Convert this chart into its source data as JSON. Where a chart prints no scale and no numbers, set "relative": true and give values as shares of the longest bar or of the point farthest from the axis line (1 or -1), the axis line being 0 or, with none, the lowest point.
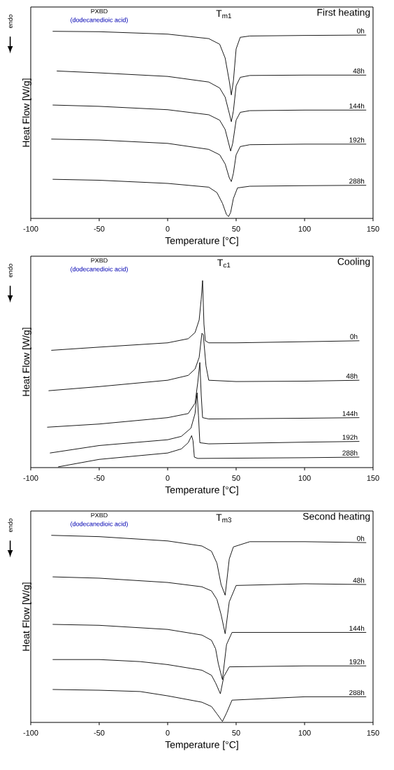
{
  "chart_data": [
    {
      "type": "line",
      "title": "First heating",
      "xlabel": "Temperature [°C]",
      "ylabel": "Heat Flow [W/g]",
      "relative": true,
      "xlim": [
        -100,
        150
      ],
      "xticks": [
        -100,
        -50,
        0,
        50,
        100,
        150
      ],
      "annotations": [
        "PXBD",
        "(dodecanedioic acid)",
        "T$_{m1}$",
        "endo"
      ],
      "series": [
        {
          "name": "0h",
          "color": "#000000",
          "x": [
            -84,
            -50,
            0,
            30,
            38,
            42,
            45,
            46.5,
            48,
            50,
            53,
            60,
            100,
            145
          ],
          "values": [
            1.0,
            0.998,
            0.985,
            0.961,
            0.931,
            0.857,
            0.734,
            0.66,
            0.734,
            0.906,
            0.968,
            0.975,
            0.978,
            0.98
          ]
        },
        {
          "name": "48h",
          "color": "#000000",
          "x": [
            -81,
            -50,
            0,
            30,
            38,
            42,
            45,
            46.5,
            48,
            50,
            53,
            60,
            100,
            145
          ],
          "values": [
            0.788,
            0.778,
            0.759,
            0.729,
            0.697,
            0.648,
            0.562,
            0.517,
            0.574,
            0.709,
            0.754,
            0.764,
            0.766,
            0.766
          ]
        },
        {
          "name": "144h",
          "color": "#000000",
          "x": [
            -84,
            -50,
            0,
            30,
            38,
            42,
            45,
            46,
            47.5,
            50,
            53,
            60,
            100,
            145
          ],
          "values": [
            0.606,
            0.599,
            0.581,
            0.554,
            0.525,
            0.475,
            0.389,
            0.36,
            0.401,
            0.525,
            0.567,
            0.576,
            0.579,
            0.579
          ]
        },
        {
          "name": "192h",
          "color": "#000000",
          "x": [
            -85,
            -50,
            0,
            30,
            38,
            42,
            45,
            46.5,
            48,
            50,
            53,
            60,
            100,
            145
          ],
          "values": [
            0.424,
            0.419,
            0.401,
            0.369,
            0.34,
            0.291,
            0.217,
            0.197,
            0.241,
            0.34,
            0.384,
            0.394,
            0.397,
            0.397
          ]
        },
        {
          "name": "288h",
          "color": "#000000",
          "x": [
            -84,
            -50,
            0,
            30,
            36,
            40,
            43,
            44.5,
            46,
            48,
            51,
            60,
            100,
            145
          ],
          "values": [
            0.209,
            0.204,
            0.187,
            0.167,
            0.138,
            0.081,
            0.02,
            0.01,
            0.032,
            0.106,
            0.163,
            0.172,
            0.175,
            0.177
          ]
        }
      ]
    },
    {
      "type": "line",
      "title": "Cooling",
      "xlabel": "Temperature [°C]",
      "ylabel": "Heat Flow [W/g]",
      "relative": true,
      "xlim": [
        -100,
        150
      ],
      "xticks": [
        -100,
        -50,
        0,
        50,
        100,
        150
      ],
      "annotations": [
        "PXBD",
        "(dodecanedioic acid)",
        "T$_{c1}$",
        "endo"
      ],
      "series": [
        {
          "name": "0h",
          "color": "#000000",
          "x": [
            -85,
            -50,
            0,
            15,
            20,
            23,
            24.5,
            25.5,
            26.5,
            27.5,
            30,
            50,
            100,
            140
          ],
          "values": [
            0.627,
            0.644,
            0.667,
            0.689,
            0.722,
            0.789,
            0.9,
            1.0,
            0.767,
            0.678,
            0.667,
            0.667,
            0.673,
            0.678
          ]
        },
        {
          "name": "48h",
          "color": "#000000",
          "x": [
            -87,
            -50,
            0,
            15,
            20,
            23,
            25,
            26,
            28,
            30,
            50,
            100,
            140
          ],
          "values": [
            0.411,
            0.433,
            0.467,
            0.493,
            0.527,
            0.589,
            0.718,
            0.711,
            0.544,
            0.467,
            0.46,
            0.462,
            0.467
          ]
        },
        {
          "name": "144h",
          "color": "#000000",
          "x": [
            -88,
            -50,
            0,
            15,
            20,
            22,
            23.5,
            24.5,
            25.5,
            30,
            100,
            140
          ],
          "values": [
            0.216,
            0.233,
            0.267,
            0.289,
            0.344,
            0.456,
            0.562,
            0.389,
            0.267,
            0.26,
            0.264,
            0.267
          ]
        },
        {
          "name": "192h",
          "color": "#000000",
          "x": [
            -86,
            -50,
            0,
            10,
            17,
            20,
            21.5,
            22.5,
            23.5,
            30,
            100,
            140
          ],
          "values": [
            0.078,
            0.118,
            0.149,
            0.167,
            0.211,
            0.289,
            0.4,
            0.278,
            0.133,
            0.127,
            0.136,
            0.14
          ]
        },
        {
          "name": "288h",
          "color": "#000000",
          "x": [
            -80,
            -50,
            0,
            10,
            15,
            17.5,
            18.5,
            19.5,
            22,
            100,
            140
          ],
          "values": [
            0.004,
            0.044,
            0.078,
            0.1,
            0.133,
            0.171,
            0.144,
            0.056,
            0.049,
            0.053,
            0.056
          ]
        }
      ]
    },
    {
      "type": "line",
      "title": "Second heating",
      "xlabel": "Temperature [°C]",
      "ylabel": "Heat Flow [W/g]",
      "relative": true,
      "xlim": [
        -100,
        150
      ],
      "xticks": [
        -100,
        -50,
        0,
        50,
        100,
        150
      ],
      "annotations": [
        "PXBD",
        "(dodecanedioic acid)",
        "T$_{m3}$",
        "endo"
      ],
      "series": [
        {
          "name": "0h",
          "color": "#000000",
          "x": [
            -85,
            -50,
            0,
            25,
            32,
            36,
            39,
            42,
            45,
            48,
            60,
            100,
            145
          ],
          "values": [
            1.0,
            0.993,
            0.97,
            0.943,
            0.915,
            0.851,
            0.737,
            0.68,
            0.874,
            0.938,
            0.966,
            0.966,
            0.961
          ]
        },
        {
          "name": "48h",
          "color": "#000000",
          "x": [
            -84,
            -50,
            0,
            25,
            32,
            36,
            39,
            42,
            45,
            50,
            100,
            145
          ],
          "values": [
            0.778,
            0.771,
            0.748,
            0.725,
            0.703,
            0.657,
            0.577,
            0.474,
            0.645,
            0.732,
            0.741,
            0.737
          ]
        },
        {
          "name": "144h",
          "color": "#000000",
          "x": [
            -84,
            -50,
            0,
            25,
            32,
            35,
            37,
            40,
            43,
            47,
            100,
            145
          ],
          "values": [
            0.524,
            0.519,
            0.497,
            0.467,
            0.439,
            0.394,
            0.314,
            0.229,
            0.416,
            0.481,
            0.481,
            0.481
          ]
        },
        {
          "name": "192h",
          "color": "#000000",
          "x": [
            -84,
            -50,
            -20,
            0,
            25,
            32,
            35,
            38.5,
            41,
            45,
            100,
            145
          ],
          "values": [
            0.336,
            0.336,
            0.325,
            0.309,
            0.279,
            0.252,
            0.211,
            0.153,
            0.245,
            0.297,
            0.302,
            0.302
          ]
        },
        {
          "name": "288h",
          "color": "#000000",
          "x": [
            -84,
            -50,
            -20,
            0,
            25,
            32,
            36,
            40,
            43,
            47,
            100,
            145
          ],
          "values": [
            0.176,
            0.172,
            0.165,
            0.142,
            0.108,
            0.085,
            0.046,
            0.005,
            0.05,
            0.119,
            0.137,
            0.137
          ]
        }
      ]
    }
  ]
}
